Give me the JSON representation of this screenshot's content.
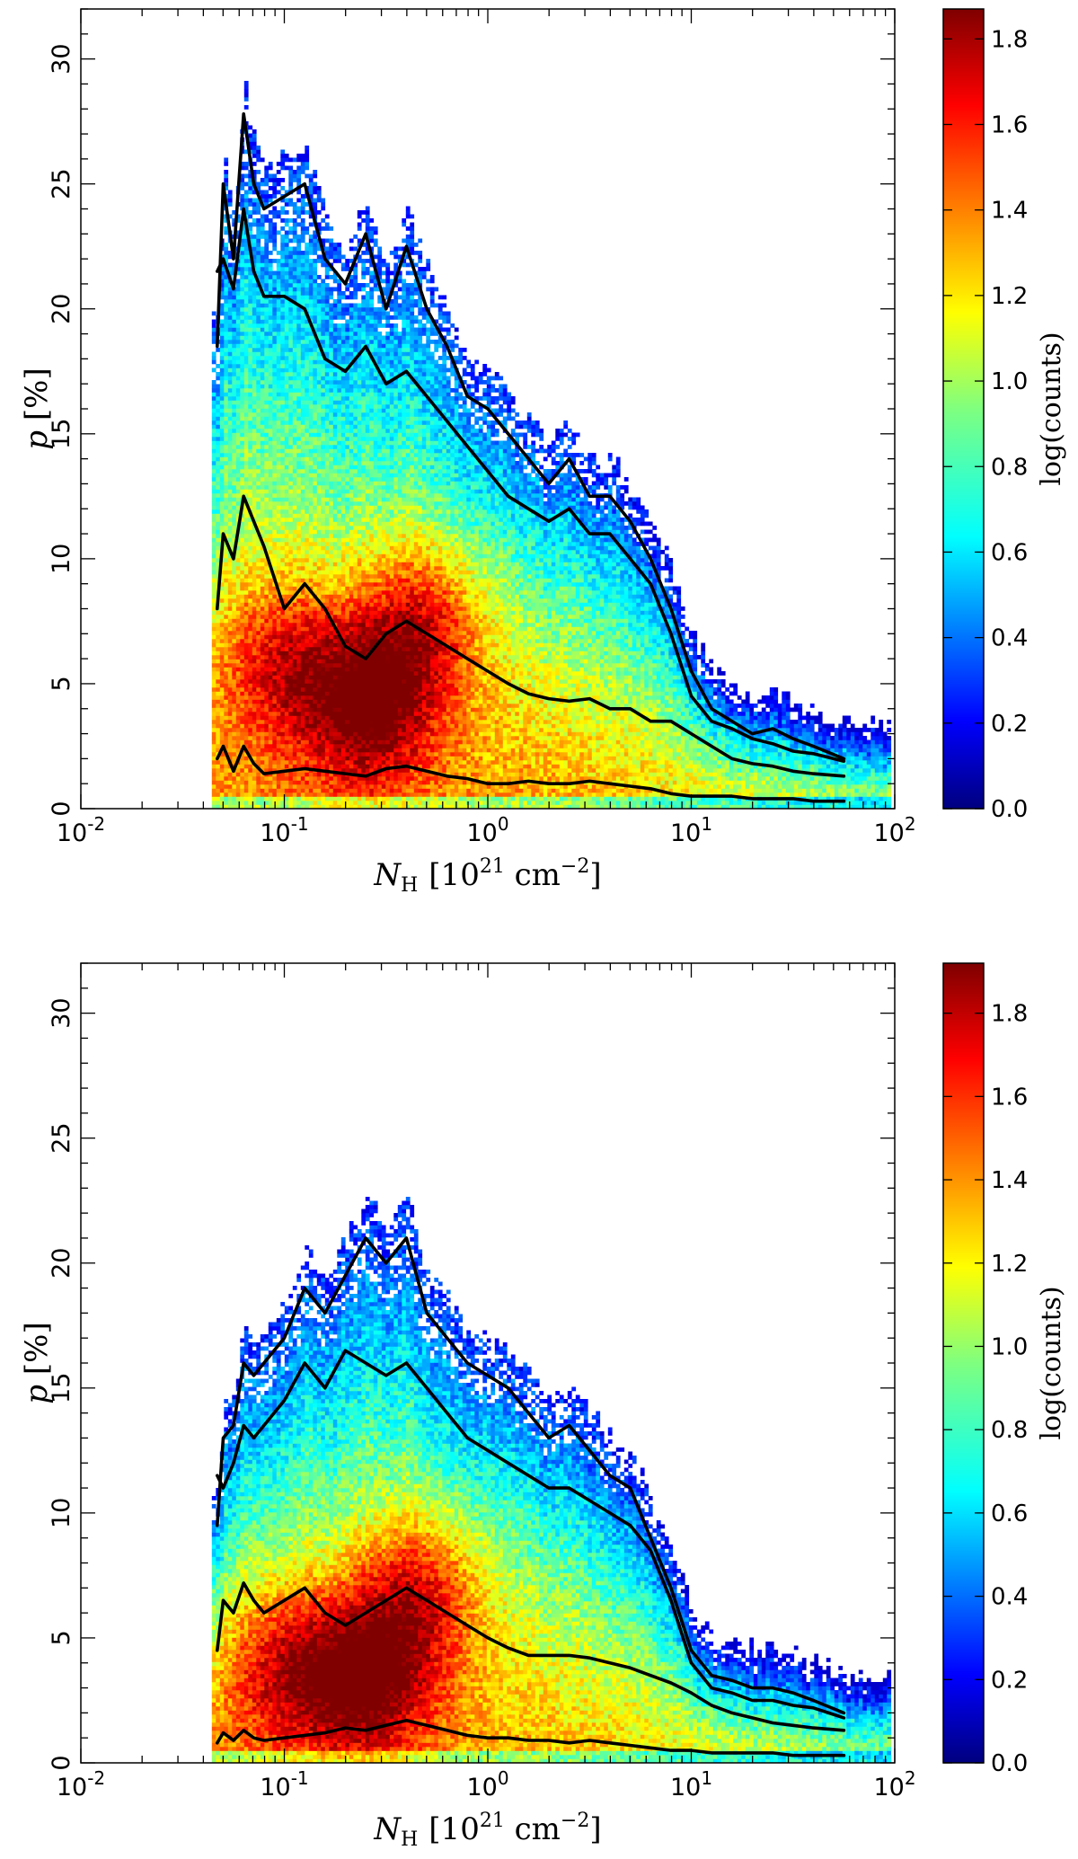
{
  "chart_data": [
    {
      "type": "heatmap",
      "panel": "top",
      "xlabel_main": "N",
      "xlabel_sub": "H",
      "xlabel_unit": "[10",
      "xlabel_exp": "21",
      "xlabel_unit2": " cm",
      "xlabel_exp2": "−2",
      "xlabel_close": "]",
      "ylabel_var": "p",
      "ylabel_unit": " [%]",
      "xscale": "log",
      "xlim": [
        0.01,
        100
      ],
      "ylim": [
        0,
        32
      ],
      "x_tick_bases": [
        "10",
        "10",
        "10",
        "10",
        "10"
      ],
      "x_tick_exps": [
        "-2",
        "-1",
        "0",
        "1",
        "2"
      ],
      "x_tick_values": [
        0.01,
        0.1,
        1,
        10,
        100
      ],
      "y_ticks": [
        0,
        5,
        10,
        15,
        20,
        25,
        30
      ],
      "colorbar": {
        "label": "log(counts)",
        "min": 0.0,
        "max": 1.87,
        "ticks": [
          "0.0",
          "0.2",
          "0.4",
          "0.6",
          "0.8",
          "1.0",
          "1.2",
          "1.4",
          "1.6",
          "1.8"
        ],
        "colormap": "jet"
      },
      "density_peaks": [
        {
          "log_x": -0.6,
          "y": 4.2,
          "level": 1.8
        },
        {
          "log_x": -0.35,
          "y": 7.5,
          "level": 1.7
        },
        {
          "log_x": -1.0,
          "y": 6.0,
          "level": 1.6
        }
      ],
      "curve_x_log": [
        -1.33,
        -1.3,
        -1.25,
        -1.2,
        -1.15,
        -1.1,
        -1.0,
        -0.9,
        -0.8,
        -0.7,
        -0.6,
        -0.5,
        -0.4,
        -0.3,
        -0.2,
        -0.1,
        0.0,
        0.1,
        0.2,
        0.3,
        0.4,
        0.5,
        0.6,
        0.7,
        0.8,
        0.9,
        1.0,
        1.1,
        1.2,
        1.3,
        1.4,
        1.5,
        1.6,
        1.75
      ],
      "series": [
        {
          "name": "max",
          "values": [
            18.5,
            25.0,
            22.0,
            27.8,
            25.0,
            24.0,
            24.5,
            25.0,
            22.0,
            21.0,
            23.0,
            20.0,
            22.5,
            20.0,
            18.5,
            16.5,
            16.0,
            15.0,
            14.0,
            13.0,
            14.0,
            12.5,
            12.5,
            11.5,
            10.0,
            8.0,
            5.5,
            4.0,
            3.5,
            3.0,
            3.2,
            2.8,
            2.5,
            2.0
          ]
        },
        {
          "name": "upper",
          "values": [
            21.5,
            22.0,
            20.8,
            24.0,
            21.5,
            20.5,
            20.5,
            20.0,
            18.0,
            17.5,
            18.5,
            17.0,
            17.5,
            16.5,
            15.5,
            14.5,
            13.5,
            12.5,
            12.0,
            11.5,
            12.0,
            11.0,
            11.0,
            10.0,
            9.0,
            7.0,
            4.5,
            3.5,
            3.2,
            2.8,
            2.6,
            2.3,
            2.2,
            1.9
          ]
        },
        {
          "name": "mean",
          "values": [
            8.0,
            11.0,
            10.0,
            12.5,
            11.5,
            10.5,
            8.0,
            9.0,
            8.0,
            6.5,
            6.0,
            7.0,
            7.5,
            7.0,
            6.5,
            6.0,
            5.5,
            5.0,
            4.6,
            4.4,
            4.3,
            4.4,
            4.0,
            4.0,
            3.5,
            3.5,
            3.0,
            2.5,
            2.0,
            1.8,
            1.7,
            1.5,
            1.4,
            1.3
          ]
        },
        {
          "name": "min",
          "values": [
            2.0,
            2.5,
            1.5,
            2.5,
            1.8,
            1.4,
            1.5,
            1.6,
            1.5,
            1.4,
            1.3,
            1.6,
            1.7,
            1.5,
            1.3,
            1.2,
            1.0,
            1.0,
            1.1,
            1.0,
            1.0,
            1.1,
            1.0,
            0.9,
            0.8,
            0.6,
            0.5,
            0.5,
            0.5,
            0.4,
            0.4,
            0.4,
            0.3,
            0.3
          ]
        }
      ]
    },
    {
      "type": "heatmap",
      "panel": "bottom",
      "xlabel_main": "N",
      "xlabel_sub": "H",
      "xlabel_unit": "[10",
      "xlabel_exp": "21",
      "xlabel_unit2": " cm",
      "xlabel_exp2": "−2",
      "xlabel_close": "]",
      "ylabel_var": "p",
      "ylabel_unit": " [%]",
      "xscale": "log",
      "xlim": [
        0.01,
        100
      ],
      "ylim": [
        0,
        32
      ],
      "x_tick_bases": [
        "10",
        "10",
        "10",
        "10",
        "10"
      ],
      "x_tick_exps": [
        "-2",
        "-1",
        "0",
        "1",
        "2"
      ],
      "x_tick_values": [
        0.01,
        0.1,
        1,
        10,
        100
      ],
      "y_ticks": [
        0,
        5,
        10,
        15,
        20,
        25,
        30
      ],
      "colorbar": {
        "label": "log(counts)",
        "min": 0.0,
        "max": 1.92,
        "ticks": [
          "0.0",
          "0.2",
          "0.4",
          "0.6",
          "0.8",
          "1.0",
          "1.2",
          "1.4",
          "1.6",
          "1.8"
        ],
        "colormap": "jet"
      },
      "density_peaks": [
        {
          "log_x": -0.6,
          "y": 3.5,
          "level": 1.85
        },
        {
          "log_x": -0.35,
          "y": 7.0,
          "level": 1.7
        },
        {
          "log_x": -1.0,
          "y": 4.0,
          "level": 1.65
        }
      ],
      "curve_x_log": [
        -1.33,
        -1.3,
        -1.25,
        -1.2,
        -1.15,
        -1.1,
        -1.0,
        -0.9,
        -0.8,
        -0.7,
        -0.6,
        -0.5,
        -0.4,
        -0.3,
        -0.2,
        -0.1,
        0.0,
        0.1,
        0.2,
        0.3,
        0.4,
        0.5,
        0.6,
        0.7,
        0.8,
        0.9,
        1.0,
        1.1,
        1.2,
        1.3,
        1.4,
        1.5,
        1.6,
        1.75
      ],
      "series": [
        {
          "name": "max",
          "values": [
            9.5,
            13.0,
            13.5,
            16.0,
            15.5,
            16.0,
            17.0,
            19.0,
            18.0,
            19.5,
            21.0,
            20.0,
            21.0,
            18.0,
            17.0,
            16.0,
            15.5,
            15.0,
            14.0,
            13.0,
            13.5,
            12.5,
            11.5,
            11.0,
            9.0,
            7.0,
            4.5,
            3.5,
            3.3,
            3.0,
            3.0,
            2.8,
            2.5,
            2.0
          ]
        },
        {
          "name": "upper",
          "values": [
            11.5,
            11.0,
            12.0,
            13.5,
            13.0,
            13.5,
            14.5,
            16.0,
            15.0,
            16.5,
            16.0,
            15.5,
            16.0,
            15.0,
            14.0,
            13.0,
            12.5,
            12.0,
            11.5,
            11.0,
            11.0,
            10.5,
            10.0,
            9.5,
            8.5,
            6.5,
            4.0,
            3.0,
            2.8,
            2.5,
            2.5,
            2.3,
            2.2,
            1.8
          ]
        },
        {
          "name": "mean",
          "values": [
            4.5,
            6.5,
            6.0,
            7.2,
            6.5,
            6.0,
            6.5,
            7.0,
            6.0,
            5.5,
            6.0,
            6.5,
            7.0,
            6.5,
            6.0,
            5.5,
            5.0,
            4.6,
            4.3,
            4.3,
            4.3,
            4.2,
            4.0,
            3.8,
            3.5,
            3.2,
            2.8,
            2.3,
            2.0,
            1.8,
            1.6,
            1.5,
            1.4,
            1.3
          ]
        },
        {
          "name": "min",
          "values": [
            0.8,
            1.2,
            0.9,
            1.3,
            1.0,
            0.9,
            1.0,
            1.1,
            1.2,
            1.4,
            1.3,
            1.5,
            1.7,
            1.5,
            1.3,
            1.1,
            1.0,
            1.0,
            0.9,
            0.9,
            0.8,
            0.9,
            0.8,
            0.7,
            0.6,
            0.5,
            0.5,
            0.4,
            0.4,
            0.4,
            0.4,
            0.3,
            0.3,
            0.3
          ]
        }
      ]
    }
  ]
}
